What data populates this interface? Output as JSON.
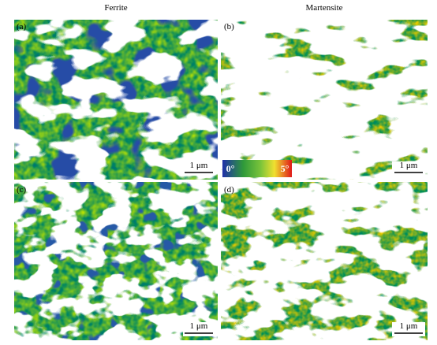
{
  "header": {
    "columns": [
      "Ferrite",
      "Martensite"
    ]
  },
  "panels": [
    {
      "label": "(a)",
      "scale_bar": "1 μm"
    },
    {
      "label": "(b)",
      "scale_bar": "1 μm"
    },
    {
      "label": "(c)",
      "scale_bar": "1 μm"
    },
    {
      "label": "(d)",
      "scale_bar": "1 μm"
    }
  ],
  "colorbar": {
    "min_label": "0°",
    "max_label": "5°"
  }
}
